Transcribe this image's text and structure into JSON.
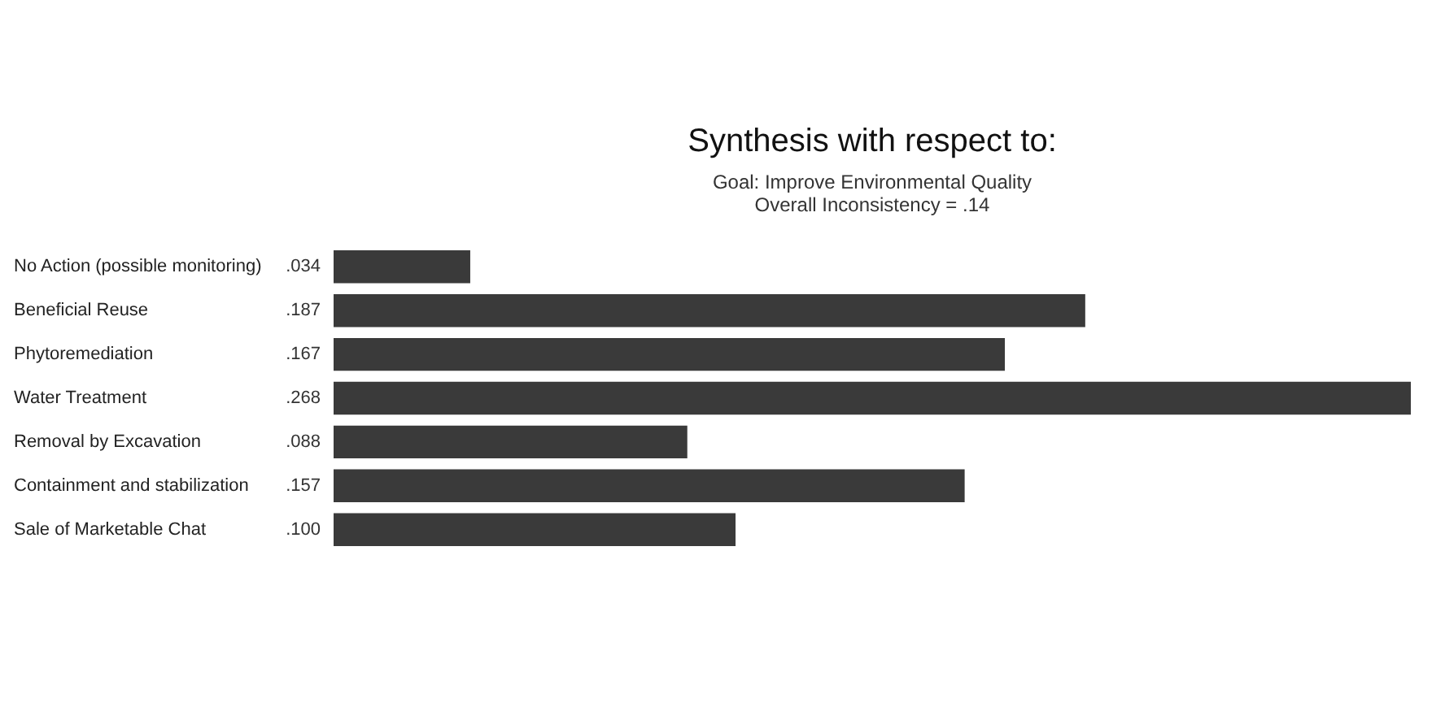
{
  "chart_data": {
    "type": "bar",
    "orientation": "horizontal",
    "title": "Synthesis with respect to:",
    "subtitle": "Goal: Improve Environmental Quality",
    "annotations": [
      "Overall Inconsistency = .14"
    ],
    "categories": [
      "No Action (possible monitoring)",
      "Beneficial Reuse",
      "Phytoremediation",
      "Water Treatment",
      "Removal by Excavation",
      "Containment and stabilization",
      "Sale of Marketable Chat"
    ],
    "values": [
      0.034,
      0.187,
      0.167,
      0.268,
      0.088,
      0.157,
      0.1
    ],
    "value_labels": [
      ".034",
      ".187",
      ".167",
      ".268",
      ".088",
      ".157",
      ".100"
    ],
    "color": "#3a3a3a",
    "tick_labels": "y"
  }
}
